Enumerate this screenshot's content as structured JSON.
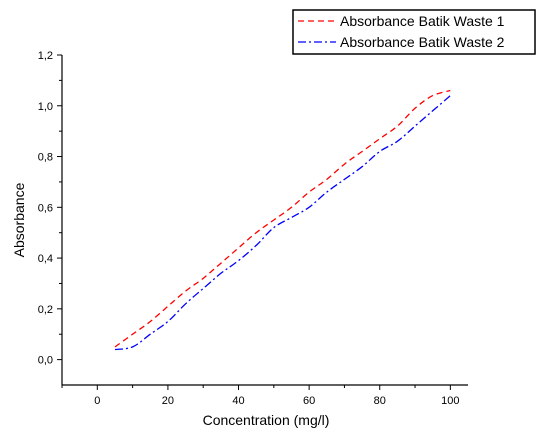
{
  "chart_data": {
    "type": "line",
    "title": "",
    "xlabel": "Concentration (mg/l)",
    "ylabel": "Absorbance",
    "xlim": [
      -10,
      105
    ],
    "ylim": [
      -0.1,
      1.2
    ],
    "x_ticks": [
      "0",
      "20",
      "40",
      "60",
      "80",
      "100"
    ],
    "y_ticks": [
      "0,0",
      "0,2",
      "0,4",
      "0,6",
      "0,8",
      "1,0",
      "1,2"
    ],
    "legend_position": "top-right",
    "grid": false,
    "series": [
      {
        "name": "Absorbance Batik Waste 1",
        "color": "#ff0000",
        "dash": "dashed",
        "x": [
          5,
          10,
          15,
          20,
          25,
          30,
          35,
          40,
          45,
          50,
          55,
          60,
          65,
          70,
          75,
          80,
          85,
          90,
          95,
          100
        ],
        "y": [
          0.05,
          0.1,
          0.15,
          0.21,
          0.27,
          0.32,
          0.38,
          0.44,
          0.5,
          0.55,
          0.6,
          0.66,
          0.71,
          0.77,
          0.82,
          0.87,
          0.92,
          0.99,
          1.04,
          1.06
        ]
      },
      {
        "name": "Absorbance Batik Waste 2",
        "color": "#0000ff",
        "dash": "dashdot",
        "x": [
          5,
          10,
          15,
          20,
          25,
          30,
          35,
          40,
          45,
          50,
          55,
          60,
          65,
          70,
          75,
          80,
          85,
          90,
          95,
          100
        ],
        "y": [
          0.04,
          0.05,
          0.1,
          0.15,
          0.22,
          0.28,
          0.34,
          0.39,
          0.45,
          0.52,
          0.56,
          0.6,
          0.66,
          0.71,
          0.76,
          0.82,
          0.86,
          0.92,
          0.98,
          1.04
        ]
      }
    ]
  }
}
